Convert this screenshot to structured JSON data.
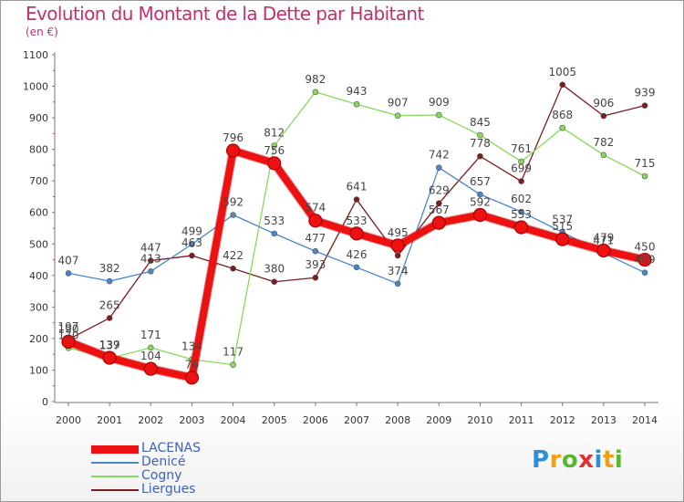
{
  "header": {
    "title": "Evolution du Montant de la Dette par Habitant",
    "unit": "(en €)"
  },
  "logo": {
    "text": "Proxiti",
    "letters": [
      {
        "ch": "P",
        "color": "#2d8fd5"
      },
      {
        "ch": "r",
        "color": "#f0a010"
      },
      {
        "ch": "o",
        "color": "#58b830"
      },
      {
        "ch": "x",
        "color": "#e03030"
      },
      {
        "ch": "i",
        "color": "#2d8fd5"
      },
      {
        "ch": "t",
        "color": "#f0a010"
      },
      {
        "ch": "i",
        "color": "#58b830"
      }
    ]
  },
  "chart_data": {
    "type": "line",
    "title": "Evolution du Montant de la Dette par Habitant",
    "ylabel": "(en €)",
    "xlabel": "",
    "x": [
      "2000",
      "2001",
      "2002",
      "2003",
      "2004",
      "2005",
      "2006",
      "2007",
      "2008",
      "2009",
      "2010",
      "2011",
      "2012",
      "2013",
      "2014"
    ],
    "ylim": [
      0,
      1100
    ],
    "yticks": [
      0,
      100,
      200,
      300,
      400,
      500,
      600,
      700,
      800,
      900,
      1000,
      1100
    ],
    "grid": false,
    "legend_position": "bottom-left",
    "series": [
      {
        "name": "Liergues",
        "color": "#7a1d1d",
        "width": 1.3,
        "marker": 3,
        "values": [
          197,
          265,
          447,
          463,
          422,
          380,
          393,
          641,
          463,
          629,
          778,
          699,
          1005,
          906,
          939
        ],
        "labels": [
          "197",
          "265",
          "447",
          "463",
          "422",
          "380",
          "393",
          "641",
          "",
          "629",
          "778",
          "699",
          "1005",
          "906",
          "939"
        ]
      },
      {
        "name": "Cogny",
        "color": "#86d95a",
        "width": 1.3,
        "marker": 3,
        "values": [
          170,
          137,
          171,
          134,
          117,
          812,
          982,
          943,
          907,
          909,
          845,
          761,
          868,
          782,
          715
        ],
        "labels": [
          "170",
          "137",
          "171",
          "134",
          "117",
          "812",
          "982",
          "943",
          "907",
          "909",
          "845",
          "761",
          "868",
          "782",
          "715"
        ]
      },
      {
        "name": "Denicé",
        "color": "#4a86c8",
        "width": 1.3,
        "marker": 3,
        "values": [
          407,
          382,
          413,
          499,
          592,
          533,
          477,
          426,
          374,
          742,
          657,
          602,
          537,
          471,
          409
        ],
        "labels": [
          "407",
          "382",
          "413",
          "499",
          "592",
          "533",
          "477",
          "426",
          "374",
          "742",
          "657",
          "602",
          "537",
          "471",
          "409"
        ]
      },
      {
        "name": "LACENAS",
        "color": "#ee1111",
        "width": 8,
        "marker": 7,
        "values": [
          190,
          139,
          104,
          76,
          796,
          756,
          574,
          533,
          495,
          567,
          592,
          553,
          515,
          479,
          450
        ],
        "labels": [
          "190",
          "139",
          "104",
          "76",
          "796",
          "756",
          "574",
          "533",
          "495",
          "567",
          "592",
          "553",
          "515",
          "479",
          "450"
        ]
      }
    ],
    "legend_order": [
      "LACENAS",
      "Denicé",
      "Cogny",
      "Liergues"
    ]
  }
}
